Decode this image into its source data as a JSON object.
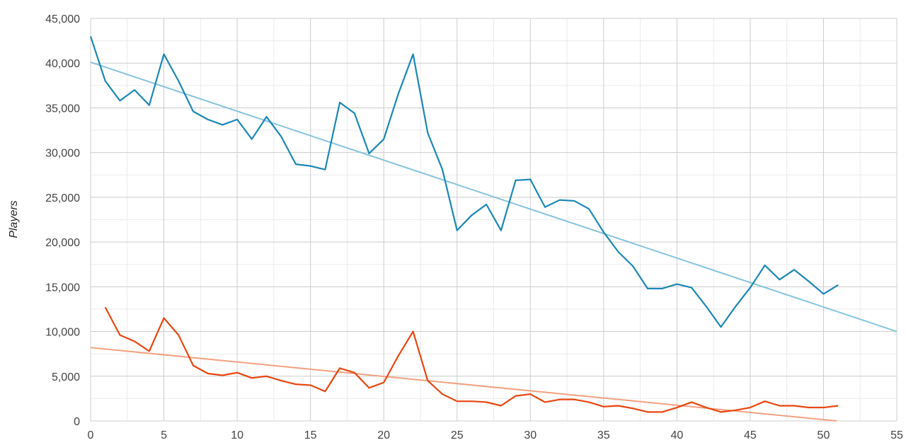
{
  "chart_data": {
    "type": "line",
    "title": "",
    "xlabel": "",
    "ylabel": "Players",
    "xlim": [
      0,
      55
    ],
    "ylim": [
      0,
      45000
    ],
    "x_ticks": [
      0,
      5,
      10,
      15,
      20,
      25,
      30,
      35,
      40,
      45,
      50,
      55
    ],
    "y_ticks": [
      0,
      5000,
      10000,
      15000,
      20000,
      25000,
      30000,
      35000,
      40000,
      45000
    ],
    "y_tick_labels": [
      "0",
      "5,000",
      "10,000",
      "15,000",
      "20,000",
      "25,000",
      "30,000",
      "35,000",
      "40,000",
      "45,000"
    ],
    "grid": true,
    "minor_grid": true,
    "legend": "none",
    "series": [
      {
        "color": "#1a87b5",
        "x": [
          0,
          1,
          2,
          3,
          4,
          5,
          6,
          7,
          8,
          9,
          10,
          11,
          12,
          13,
          14,
          15,
          16,
          17,
          18,
          19,
          20,
          21,
          22,
          23,
          24,
          25,
          26,
          27,
          28,
          29,
          30,
          31,
          32,
          33,
          34,
          35,
          36,
          37,
          38,
          39,
          40,
          41,
          42,
          43,
          44,
          45,
          46,
          47,
          48,
          49,
          50,
          51
        ],
        "values": [
          43000,
          38000,
          35800,
          37000,
          35300,
          41000,
          38000,
          34600,
          33700,
          33100,
          33700,
          31500,
          34000,
          31800,
          28700,
          28500,
          28100,
          35600,
          34400,
          29900,
          31500,
          36600,
          41000,
          32200,
          28100,
          21300,
          23000,
          24200,
          21300,
          26900,
          27000,
          23900,
          24700,
          24600,
          23700,
          21100,
          18900,
          17300,
          14800,
          14800,
          15300,
          14900,
          12800,
          10500,
          12800,
          14900,
          17400,
          15800,
          16900,
          15600,
          14200,
          15200
        ]
      },
      {
        "color": "#e8460f",
        "x": [
          1,
          2,
          3,
          4,
          5,
          6,
          7,
          8,
          9,
          10,
          11,
          12,
          13,
          14,
          15,
          16,
          17,
          18,
          19,
          20,
          21,
          22,
          23,
          24,
          25,
          26,
          27,
          28,
          29,
          30,
          31,
          32,
          33,
          34,
          35,
          36,
          37,
          38,
          39,
          40,
          41,
          42,
          43,
          44,
          45,
          46,
          47,
          48,
          49,
          50,
          51
        ],
        "values": [
          12700,
          9600,
          8900,
          7800,
          11500,
          9600,
          6200,
          5300,
          5100,
          5400,
          4800,
          5000,
          4500,
          4100,
          4000,
          3300,
          5900,
          5400,
          3700,
          4300,
          7300,
          10000,
          4500,
          3000,
          2200,
          2200,
          2100,
          1700,
          2800,
          3000,
          2100,
          2400,
          2400,
          2100,
          1600,
          1700,
          1400,
          1000,
          1000,
          1500,
          2100,
          1500,
          1000,
          1200,
          1500,
          2200,
          1700,
          1700,
          1500,
          1500,
          1700
        ]
      }
    ],
    "trendlines": [
      {
        "color": "#85c3de",
        "x": [
          0,
          55
        ],
        "values": [
          40100,
          10000
        ]
      },
      {
        "color": "#f3a07f",
        "x": [
          0,
          50.9
        ],
        "values": [
          8200,
          0
        ]
      }
    ]
  }
}
